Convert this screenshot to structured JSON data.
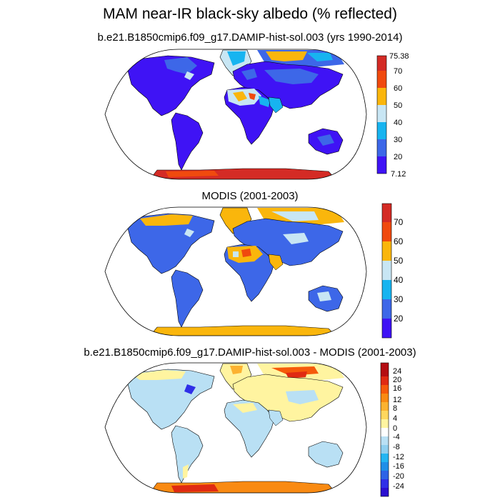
{
  "figure": {
    "title": "MAM near-IR black-sky albedo (% reflected)"
  },
  "panels": [
    {
      "title": "b.e21.B1850cmip6.f09_g17.DAMIP-hist-sol.003 (yrs 1990-2014)",
      "colorbar": {
        "colors": [
          "#3f13f5",
          "#3d67e8",
          "#17b4f0",
          "#c8e6f4",
          "#fab60c",
          "#f04a0e",
          "#d42b25"
        ],
        "labels": [
          "7.12",
          "20",
          "30",
          "40",
          "50",
          "60",
          "70",
          "75.38"
        ]
      }
    },
    {
      "title": "MODIS (2001-2003)",
      "colorbar": {
        "colors": [
          "#3f13f5",
          "#3d67e8",
          "#17b4f0",
          "#c8e6f4",
          "#fab60c",
          "#f04a0e",
          "#d42b25"
        ],
        "labels": [
          "20",
          "30",
          "40",
          "50",
          "60",
          "70"
        ]
      }
    },
    {
      "title": "b.e21.B1850cmip6.f09_g17.DAMIP-hist-sol.003 - MODIS (2001-2003)",
      "colorbar": {
        "colors": [
          "#2b0fd0",
          "#2f2fe8",
          "#2e63e6",
          "#1f8fe8",
          "#23b5f2",
          "#8fcfef",
          "#b9e0f4",
          "#ffffff",
          "#fff4a0",
          "#ffd75e",
          "#fcb230",
          "#f98a12",
          "#f55a0a",
          "#e02a12",
          "#b40d12"
        ],
        "labels": [
          "24",
          "20",
          "16",
          "12",
          "8",
          "4",
          "0",
          "-4",
          "-8",
          "-12",
          "-16",
          "-20",
          "-24"
        ]
      }
    }
  ]
}
